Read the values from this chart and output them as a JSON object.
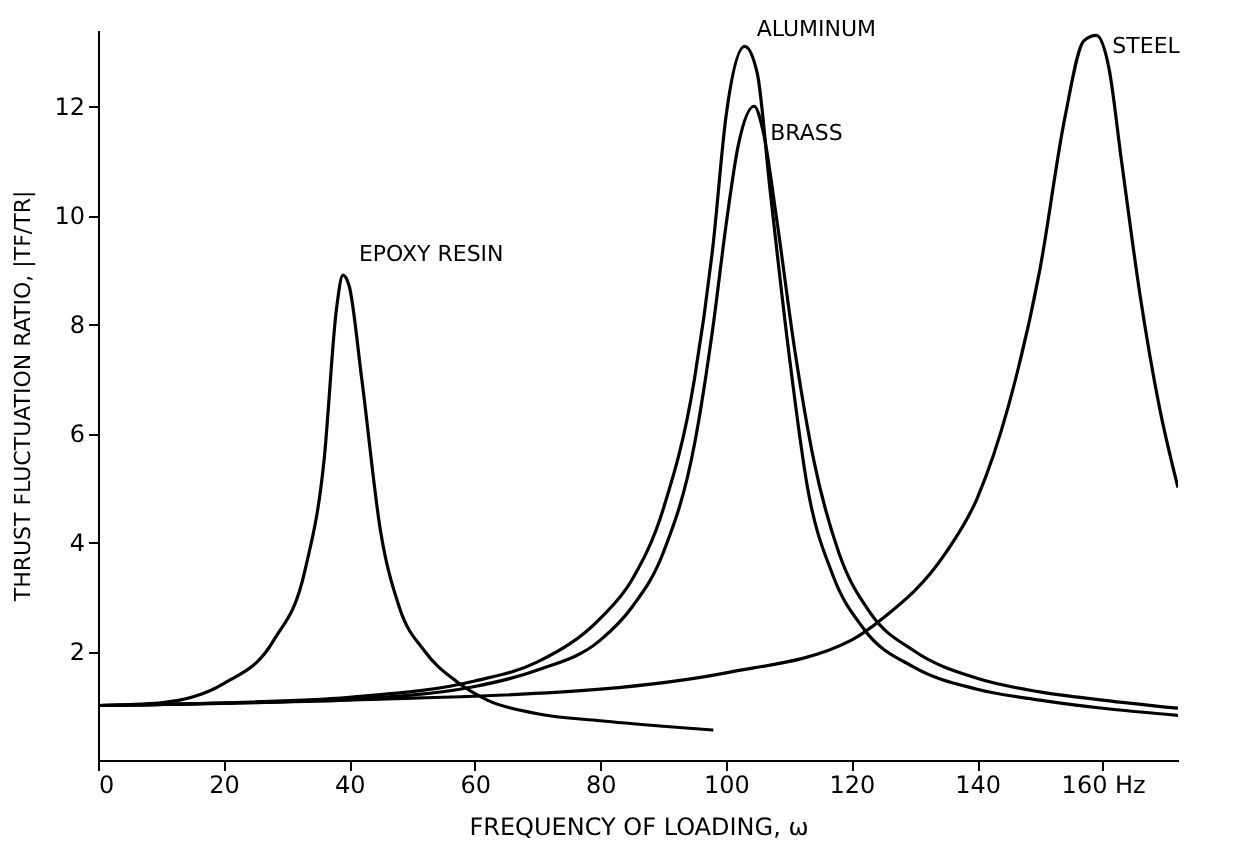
{
  "chart_data": {
    "type": "line",
    "xlabel": "FREQUENCY OF LOADING, ω",
    "ylabel": "THRUST FLUCTUATION RATIO, |TF/TR|",
    "xlim": [
      0,
      172
    ],
    "ylim": [
      0,
      13.4
    ],
    "xticks": [
      0,
      20,
      40,
      60,
      80,
      100,
      120,
      140,
      {
        "value": 160,
        "label": "160 Hz"
      }
    ],
    "yticks": [
      2,
      4,
      6,
      8,
      10,
      12
    ],
    "grid": false,
    "marker": "none",
    "line_style": "solid",
    "series": [
      {
        "name": "EPOXY RESIN",
        "color": "#000000",
        "x": [
          0,
          10,
          20,
          28,
          33,
          36,
          38,
          39,
          40,
          42,
          45,
          48,
          52,
          57,
          62,
          70,
          80,
          90,
          98
        ],
        "values": [
          1.0,
          1.05,
          1.4,
          2.2,
          3.5,
          5.5,
          8.3,
          8.9,
          8.7,
          7.0,
          4.2,
          2.8,
          2.0,
          1.45,
          1.1,
          0.85,
          0.72,
          0.62,
          0.55
        ]
      },
      {
        "name": "ALUMINUM",
        "color": "#000000",
        "x": [
          0,
          20,
          40,
          60,
          70,
          80,
          85,
          90,
          95,
          98,
          100,
          103,
          105,
          107,
          110,
          113,
          117,
          122,
          130,
          140,
          150,
          160,
          172
        ],
        "values": [
          1.0,
          1.05,
          1.15,
          1.45,
          1.8,
          2.6,
          3.3,
          4.6,
          7.0,
          9.5,
          11.8,
          13.1,
          12.6,
          10.5,
          7.5,
          5.0,
          3.4,
          2.4,
          1.7,
          1.3,
          1.1,
          0.95,
          0.82
        ]
      },
      {
        "name": "BRASS",
        "color": "#000000",
        "x": [
          0,
          40,
          60,
          70,
          80,
          85,
          90,
          95,
          98,
          100,
          102,
          104.5,
          106,
          108,
          111,
          114,
          118,
          123,
          130,
          140,
          150,
          160,
          172
        ],
        "values": [
          1.0,
          1.12,
          1.35,
          1.65,
          2.2,
          2.8,
          3.8,
          5.8,
          8.0,
          9.8,
          11.3,
          12.0,
          11.5,
          10.0,
          7.5,
          5.5,
          3.8,
          2.7,
          2.0,
          1.5,
          1.25,
          1.1,
          0.95
        ]
      },
      {
        "name": "STEEL",
        "color": "#000000",
        "x": [
          0,
          40,
          80,
          100,
          120,
          125,
          135,
          140,
          145,
          150,
          154,
          157,
          159,
          161,
          163,
          166,
          169,
          172
        ],
        "values": [
          1.0,
          1.1,
          1.3,
          1.6,
          2.2,
          2.6,
          3.8,
          4.8,
          6.5,
          9.0,
          11.8,
          13.2,
          13.3,
          12.7,
          11.0,
          8.5,
          6.5,
          5.0
        ]
      }
    ]
  }
}
